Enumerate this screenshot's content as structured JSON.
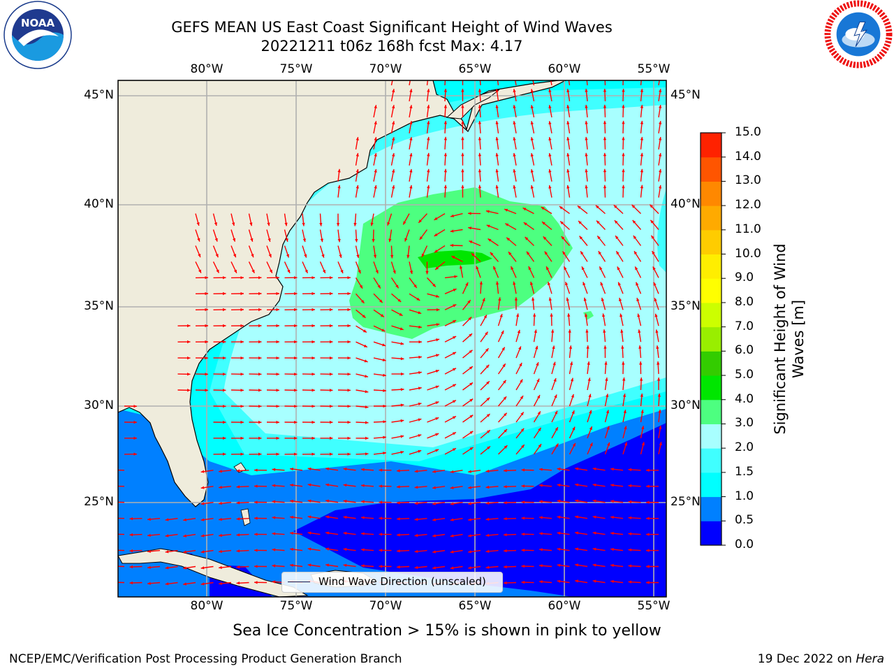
{
  "title": {
    "line1": "GEFS MEAN US East Coast Significant Height of Wind Waves",
    "line2": "20221211 t06z 168h fcst   Max: 4.17"
  },
  "axes": {
    "lon_labels": [
      "80°W",
      "75°W",
      "70°W",
      "65°W",
      "60°W",
      "55°W"
    ],
    "lat_labels": [
      "45°N",
      "40°N",
      "35°N",
      "30°N",
      "25°N"
    ],
    "lon_values": [
      -80,
      -75,
      -70,
      -65,
      -60,
      -55
    ],
    "lat_values": [
      45,
      40,
      35,
      30,
      25
    ]
  },
  "legend": {
    "label": "Wind Wave Direction (unscaled)"
  },
  "colorbar": {
    "title": "Significant Height of Wind Waves [m]",
    "title_line1": "Significant Height of Wind",
    "title_line2": "Waves [m]",
    "ticks": [
      "0.0",
      "0.5",
      "1.0",
      "1.5",
      "2.0",
      "3.0",
      "4.0",
      "5.0",
      "6.0",
      "7.0",
      "8.0",
      "9.0",
      "10.0",
      "11.0",
      "12.0",
      "13.0",
      "14.0",
      "15.0"
    ],
    "colors": [
      "#0000ff",
      "#0080ff",
      "#00ffff",
      "#40ffff",
      "#a8ffff",
      "#4dff80",
      "#00e600",
      "#33cc00",
      "#99ee00",
      "#ccff00",
      "#ffff00",
      "#ffee00",
      "#ffcc00",
      "#ffaa00",
      "#ff8800",
      "#ff5500",
      "#ff2200"
    ]
  },
  "footnote": "Sea Ice Concentration > 15% is shown in pink to yellow",
  "credits": {
    "left": "NCEP/EMC/Verification Post Processing Product Generation Branch",
    "right_prefix": "19 Dec 2022 on ",
    "right_host": "Hera"
  },
  "logos": {
    "noaa": {
      "text": "NOAA",
      "ring_text": "NATIONAL OCEANIC AND ATMOSPHERIC ADMINISTRATION · U.S. DEPARTMENT OF COMMERCE"
    },
    "nws": {
      "ring_text": "NATIONAL WEATHER SERVICE"
    }
  },
  "colors": {
    "land": "#efecdc",
    "arrow": "#ff0000",
    "grid": "#b0b0b0"
  }
}
